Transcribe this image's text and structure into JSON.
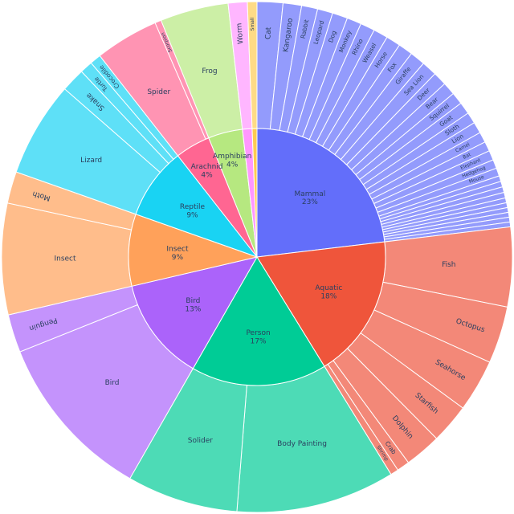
{
  "chart_data": {
    "type": "sunburst",
    "value_unit": "percent",
    "categories": [
      {
        "name": "Mammal",
        "label": "Mammal",
        "pct_text": "23%",
        "value": 23,
        "color": "#636efa",
        "text_color": "#ffffff",
        "children": [
          {
            "name": "Cat",
            "value": 1.6,
            "color": "#939bfc",
            "label": "Cat"
          },
          {
            "name": "Kangaroo",
            "value": 1.15,
            "color": "#939bfc",
            "label": "Kangaroo"
          },
          {
            "name": "Rabbit",
            "value": 1.0,
            "color": "#939bfc",
            "label": "Rabbit"
          },
          {
            "name": "Leopard",
            "value": 0.95,
            "color": "#939bfc",
            "label": "Leopard"
          },
          {
            "name": "Dog",
            "value": 0.95,
            "color": "#939bfc",
            "label": "Dog"
          },
          {
            "name": "Monkey",
            "value": 0.9,
            "color": "#939bfc",
            "label": "Monkey"
          },
          {
            "name": "Rhino",
            "value": 0.9,
            "color": "#939bfc",
            "label": "Rhino"
          },
          {
            "name": "Weasel",
            "value": 0.9,
            "color": "#939bfc",
            "label": "Weasel"
          },
          {
            "name": "Horse",
            "value": 0.9,
            "color": "#939bfc",
            "label": "Horse"
          },
          {
            "name": "Fox",
            "value": 0.9,
            "color": "#939bfc",
            "label": "Fox"
          },
          {
            "name": "Giraffe",
            "value": 0.95,
            "color": "#939bfc",
            "label": "Giraffe"
          },
          {
            "name": "Sea Lion",
            "value": 0.95,
            "color": "#939bfc",
            "label": "Sea Lion"
          },
          {
            "name": "Deer",
            "value": 0.85,
            "color": "#939bfc",
            "label": "Deer"
          },
          {
            "name": "Bear",
            "value": 0.8,
            "color": "#939bfc",
            "label": "Bear"
          },
          {
            "name": "Squirrel",
            "value": 0.75,
            "color": "#939bfc",
            "label": "Squirrel"
          },
          {
            "name": "Goat",
            "value": 0.75,
            "color": "#939bfc",
            "label": "Goat"
          },
          {
            "name": "Sloth",
            "value": 0.7,
            "color": "#939bfc",
            "label": "Sloth"
          },
          {
            "name": "Lion",
            "value": 0.7,
            "color": "#939bfc",
            "label": "Lion"
          },
          {
            "name": "Camel",
            "value": 0.65,
            "color": "#939bfc",
            "label": "Camel"
          },
          {
            "name": "Bat",
            "value": 0.6,
            "color": "#939bfc",
            "label": "Bat"
          },
          {
            "name": "Elephant",
            "value": 0.6,
            "color": "#939bfc",
            "label": "Elephant"
          },
          {
            "name": "Hedgehog",
            "value": 0.55,
            "color": "#939bfc",
            "label": "Hedgehog"
          },
          {
            "name": "Mouse",
            "value": 0.5,
            "color": "#939bfc",
            "label": "Mouse"
          },
          {
            "name": "m_s1",
            "value": 0.35,
            "color": "#939bfc",
            "label": ""
          },
          {
            "name": "m_s2",
            "value": 0.35,
            "color": "#939bfc",
            "label": ""
          },
          {
            "name": "m_s3",
            "value": 0.35,
            "color": "#939bfc",
            "label": ""
          },
          {
            "name": "m_s4",
            "value": 0.35,
            "color": "#939bfc",
            "label": ""
          },
          {
            "name": "m_s5",
            "value": 0.3,
            "color": "#939bfc",
            "label": ""
          },
          {
            "name": "m_s6",
            "value": 0.3,
            "color": "#939bfc",
            "label": ""
          },
          {
            "name": "m_s7",
            "value": 0.3,
            "color": "#939bfc",
            "label": ""
          },
          {
            "name": "m_s8",
            "value": 0.3,
            "color": "#939bfc",
            "label": ""
          },
          {
            "name": "m_s9",
            "value": 0.3,
            "color": "#939bfc",
            "label": ""
          },
          {
            "name": "m_s10",
            "value": 0.3,
            "color": "#939bfc",
            "label": ""
          }
        ]
      },
      {
        "name": "Aquatic",
        "label": "Aquatic",
        "pct_text": "18%",
        "value": 18,
        "color": "#ef553b",
        "text_color": "#2a3f5f",
        "children": [
          {
            "name": "Fish",
            "value": 5.0,
            "color": "#f38878",
            "label": "Fish"
          },
          {
            "name": "Octopus",
            "value": 3.6,
            "color": "#f38878",
            "label": "Octopus"
          },
          {
            "name": "Seahorse",
            "value": 3.3,
            "color": "#f38878",
            "label": "Seahorse"
          },
          {
            "name": "Starfish",
            "value": 2.5,
            "color": "#f38878",
            "label": "Starfish"
          },
          {
            "name": "Dolphin",
            "value": 2.3,
            "color": "#f38878",
            "label": "Dolphin"
          },
          {
            "name": "Crab",
            "value": 0.8,
            "color": "#f38878",
            "label": "Crab"
          },
          {
            "name": "Shrimp",
            "value": 0.5,
            "color": "#f38878",
            "label": "Shrimp"
          }
        ]
      },
      {
        "name": "Person",
        "label": "Person",
        "pct_text": "17%",
        "value": 17,
        "color": "#00cc96",
        "text_color": "#2a3f5f",
        "children": [
          {
            "name": "Body Painting",
            "value": 10.0,
            "color": "#4ddbb6",
            "label": "Body Painting"
          },
          {
            "name": "Solider",
            "value": 7.0,
            "color": "#4ddbb6",
            "label": "Solider"
          }
        ]
      },
      {
        "name": "Bird",
        "label": "Bird",
        "pct_text": "13%",
        "value": 13,
        "color": "#ab63fa",
        "text_color": "#2a3f5f",
        "children": [
          {
            "name": "Bird",
            "value": 10.6,
            "color": "#c493fc",
            "label": "Bird"
          },
          {
            "name": "Penguin",
            "value": 2.4,
            "color": "#c493fc",
            "label": "Penguin"
          }
        ]
      },
      {
        "name": "Insect",
        "label": "Insect",
        "pct_text": "9%",
        "value": 9,
        "color": "#ffa15a",
        "text_color": "#2a3f5f",
        "children": [
          {
            "name": "Insect",
            "value": 7.0,
            "color": "#ffbd8b",
            "label": "Insect"
          },
          {
            "name": "Moth",
            "value": 2.0,
            "color": "#ffbd8b",
            "label": "Moth"
          }
        ]
      },
      {
        "name": "Reptile",
        "label": "Reptile",
        "pct_text": "9%",
        "value": 9,
        "color": "#19d3f3",
        "text_color": "#2a3f5f",
        "children": [
          {
            "name": "Lizard",
            "value": 6.0,
            "color": "#5ee0f7",
            "label": "Lizard"
          },
          {
            "name": "Snake",
            "value": 1.5,
            "color": "#5ee0f7",
            "label": "Snake"
          },
          {
            "name": "Turtle",
            "value": 0.8,
            "color": "#5ee0f7",
            "label": "Turtle"
          },
          {
            "name": "Crocodile",
            "value": 0.7,
            "color": "#5ee0f7",
            "label": "Crocodile"
          }
        ]
      },
      {
        "name": "Arachnid",
        "label": "Arachnid",
        "pct_text": "4%",
        "value": 4.4,
        "color": "#ff6692",
        "text_color": "#2a3f5f",
        "children": [
          {
            "name": "Spider",
            "value": 4.0,
            "color": "#ff94b3",
            "label": "Spider"
          },
          {
            "name": "Scorpion",
            "value": 0.4,
            "color": "#ff94b3",
            "label": "Scorpion"
          }
        ]
      },
      {
        "name": "Amphibian",
        "label": "Amphibian",
        "pct_text": "4%",
        "value": 4.3,
        "color": "#b6e880",
        "text_color": "#2a3f5f",
        "children": [
          {
            "name": "Frog",
            "value": 4.3,
            "color": "#ccefa6",
            "label": "Frog"
          }
        ]
      },
      {
        "name": "Worm",
        "label": "",
        "pct_text": "",
        "value": 1.2,
        "color": "#ff97ff",
        "text_color": "#2a3f5f",
        "children": [
          {
            "name": "Worm",
            "value": 1.2,
            "color": "#ffb6ff",
            "label": "Worm"
          }
        ]
      },
      {
        "name": "Small",
        "label": "",
        "pct_text": "",
        "value": 0.6,
        "color": "#fecb52",
        "text_color": "#2a3f5f",
        "children": [
          {
            "name": "Small",
            "value": 0.6,
            "color": "#fedb86",
            "label": "Small"
          }
        ]
      }
    ]
  }
}
